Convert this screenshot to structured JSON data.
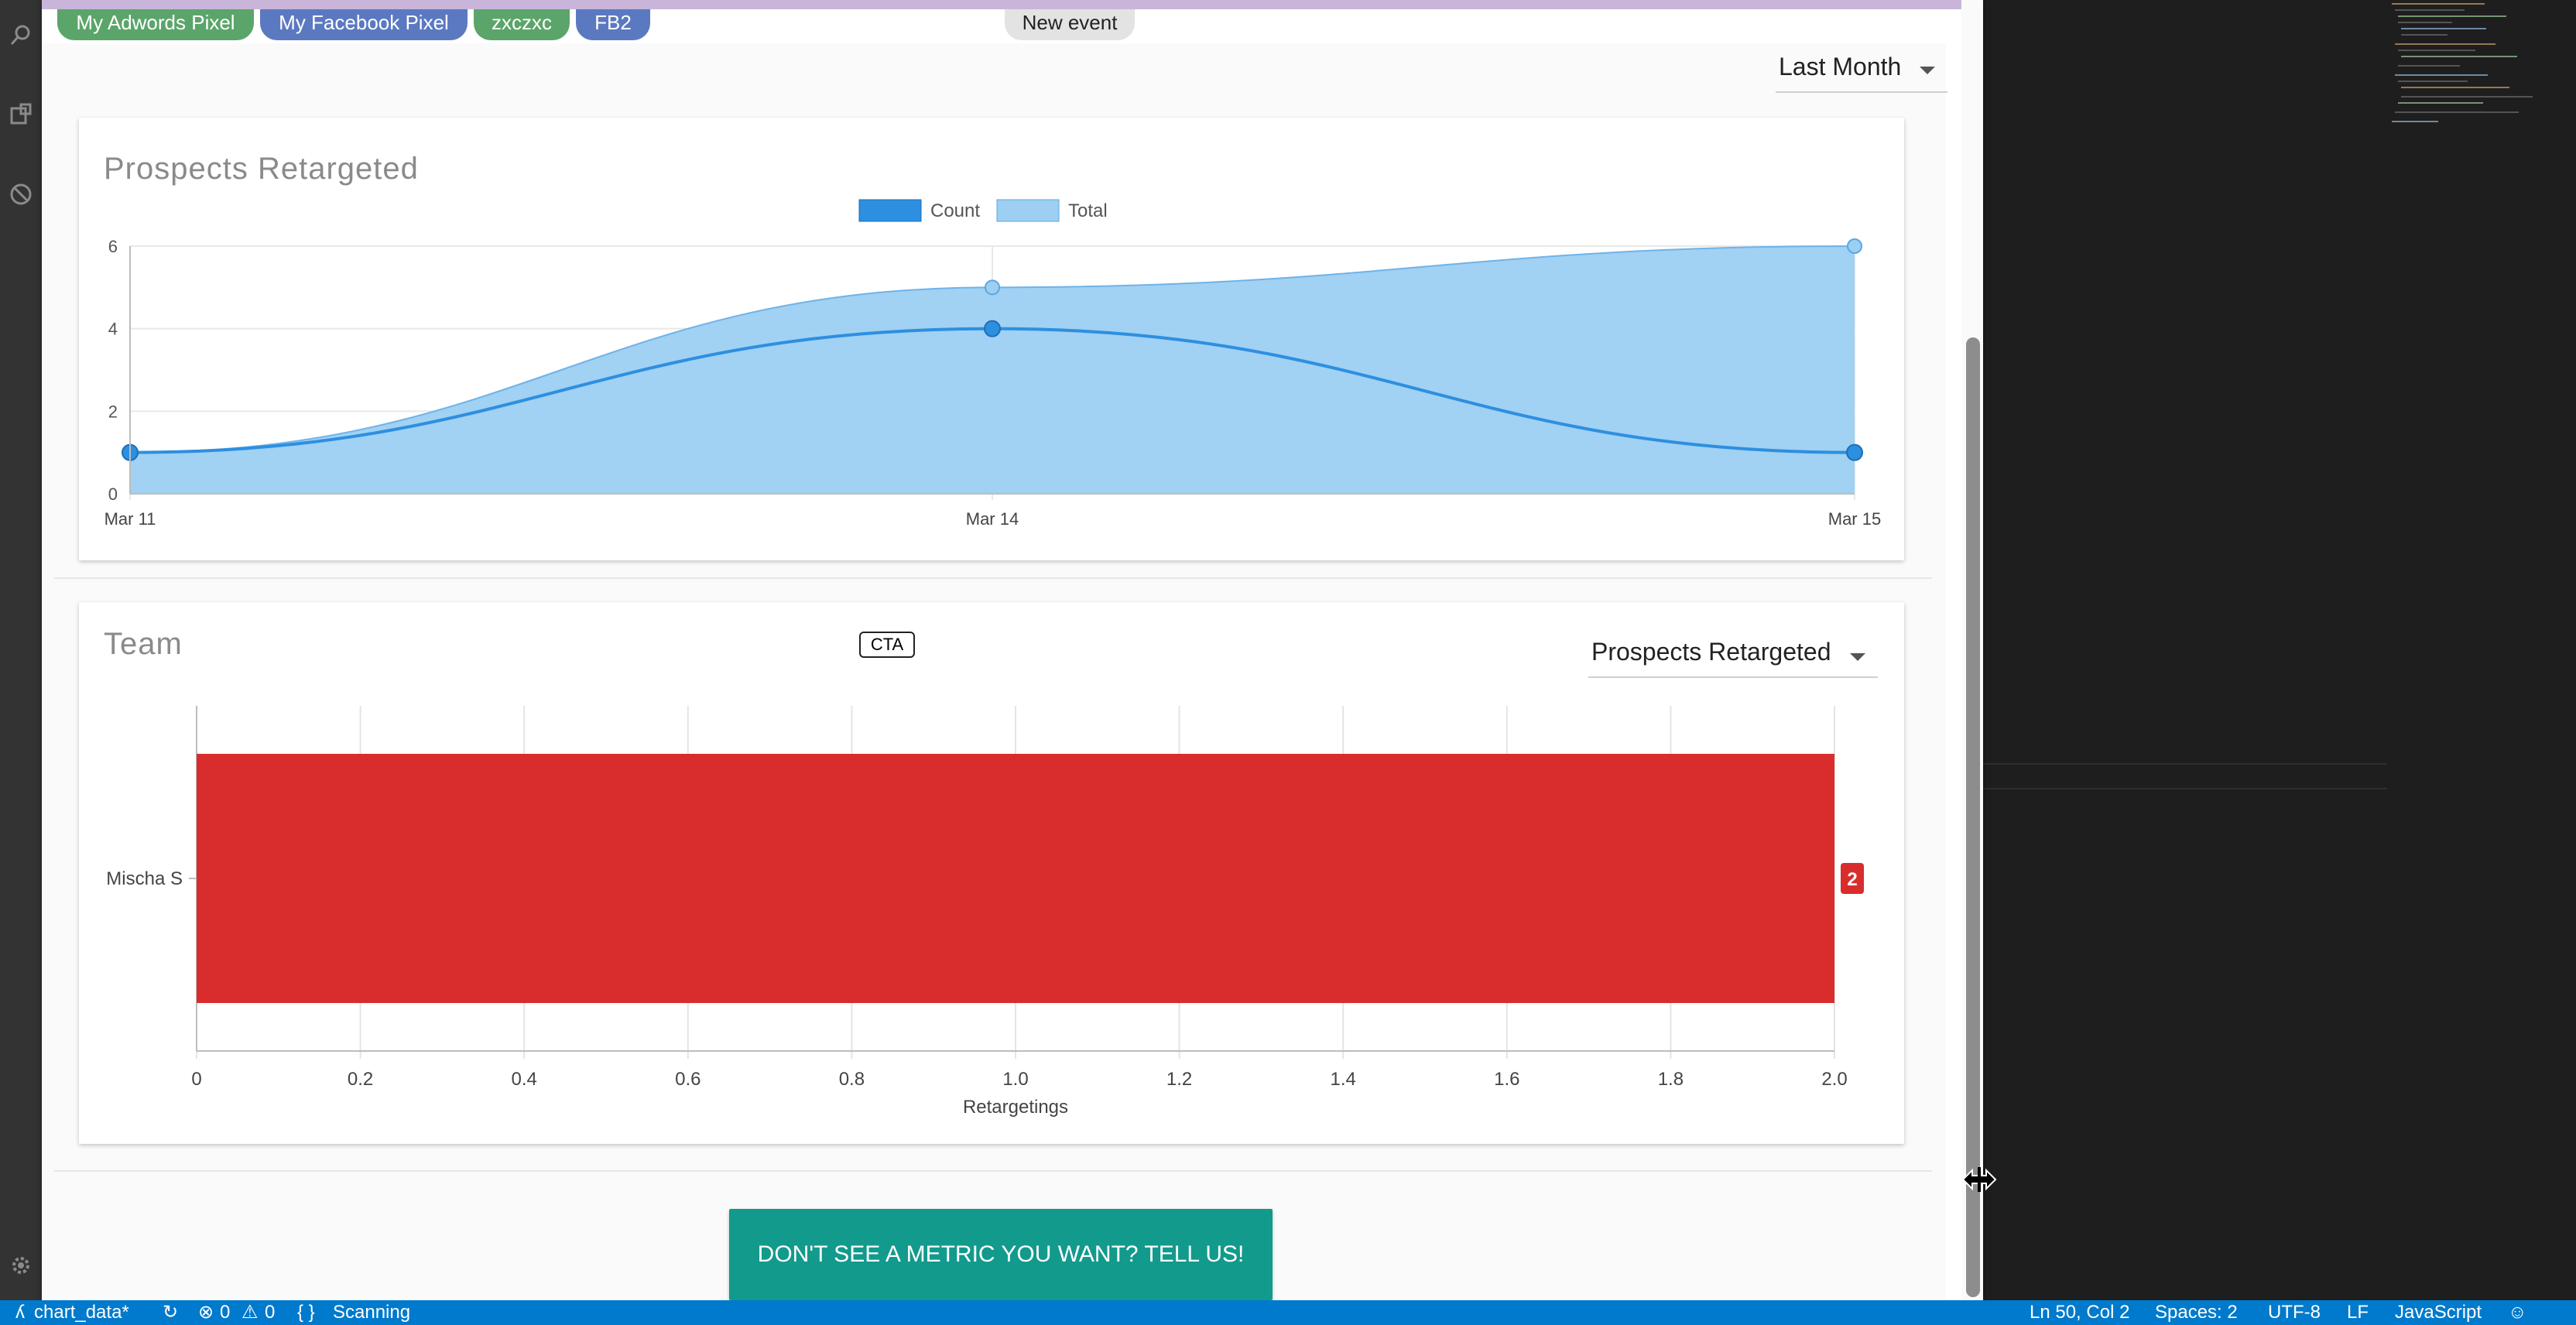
{
  "tags": [
    "My Adwords Pixel",
    "My Facebook Pixel",
    "zxczxc",
    "FB2",
    "New event"
  ],
  "period_select": {
    "value": "Last Month"
  },
  "prospects_card": {
    "title": "Prospects Retargeted"
  },
  "team_card": {
    "title": "Team",
    "badge": "CTA",
    "metric_select": "Prospects Retargeted",
    "value_label": "2"
  },
  "cta_button": "DON'T SEE A METRIC YOU WANT? TELL US!",
  "statusbar": {
    "left": [
      "chart_data*",
      "0",
      "0",
      "Scanning"
    ],
    "right": [
      "Ln 50, Col 2",
      "Spaces: 2",
      "UTF-8",
      "LF",
      "JavaScript"
    ]
  },
  "colors": {
    "count": "#2d8fe0",
    "total": "#9ccff2",
    "bar": "#d92d2d",
    "button": "#129a8c",
    "statusbar": "#007acc"
  },
  "chart_data": [
    {
      "type": "area",
      "title": "Prospects Retargeted",
      "x": [
        "Mar 11",
        "Mar 14",
        "Mar 15"
      ],
      "series": [
        {
          "name": "Count",
          "values": [
            1,
            4,
            1
          ]
        },
        {
          "name": "Total",
          "values": [
            1,
            5,
            6
          ]
        }
      ],
      "ylim": [
        0,
        6
      ],
      "yticks": [
        0,
        2,
        4,
        6
      ],
      "legend": "top-center",
      "grid": true
    },
    {
      "type": "bar",
      "orientation": "horizontal",
      "title": "Team",
      "categories": [
        "Mischa S"
      ],
      "values": [
        2
      ],
      "xlabel": "Retargetings",
      "xlim": [
        0,
        2.0
      ],
      "xticks": [
        "0",
        "0.2",
        "0.4",
        "0.6",
        "0.8",
        "1.0",
        "1.2",
        "1.4",
        "1.6",
        "1.8",
        "2.0"
      ],
      "grid": true
    }
  ]
}
